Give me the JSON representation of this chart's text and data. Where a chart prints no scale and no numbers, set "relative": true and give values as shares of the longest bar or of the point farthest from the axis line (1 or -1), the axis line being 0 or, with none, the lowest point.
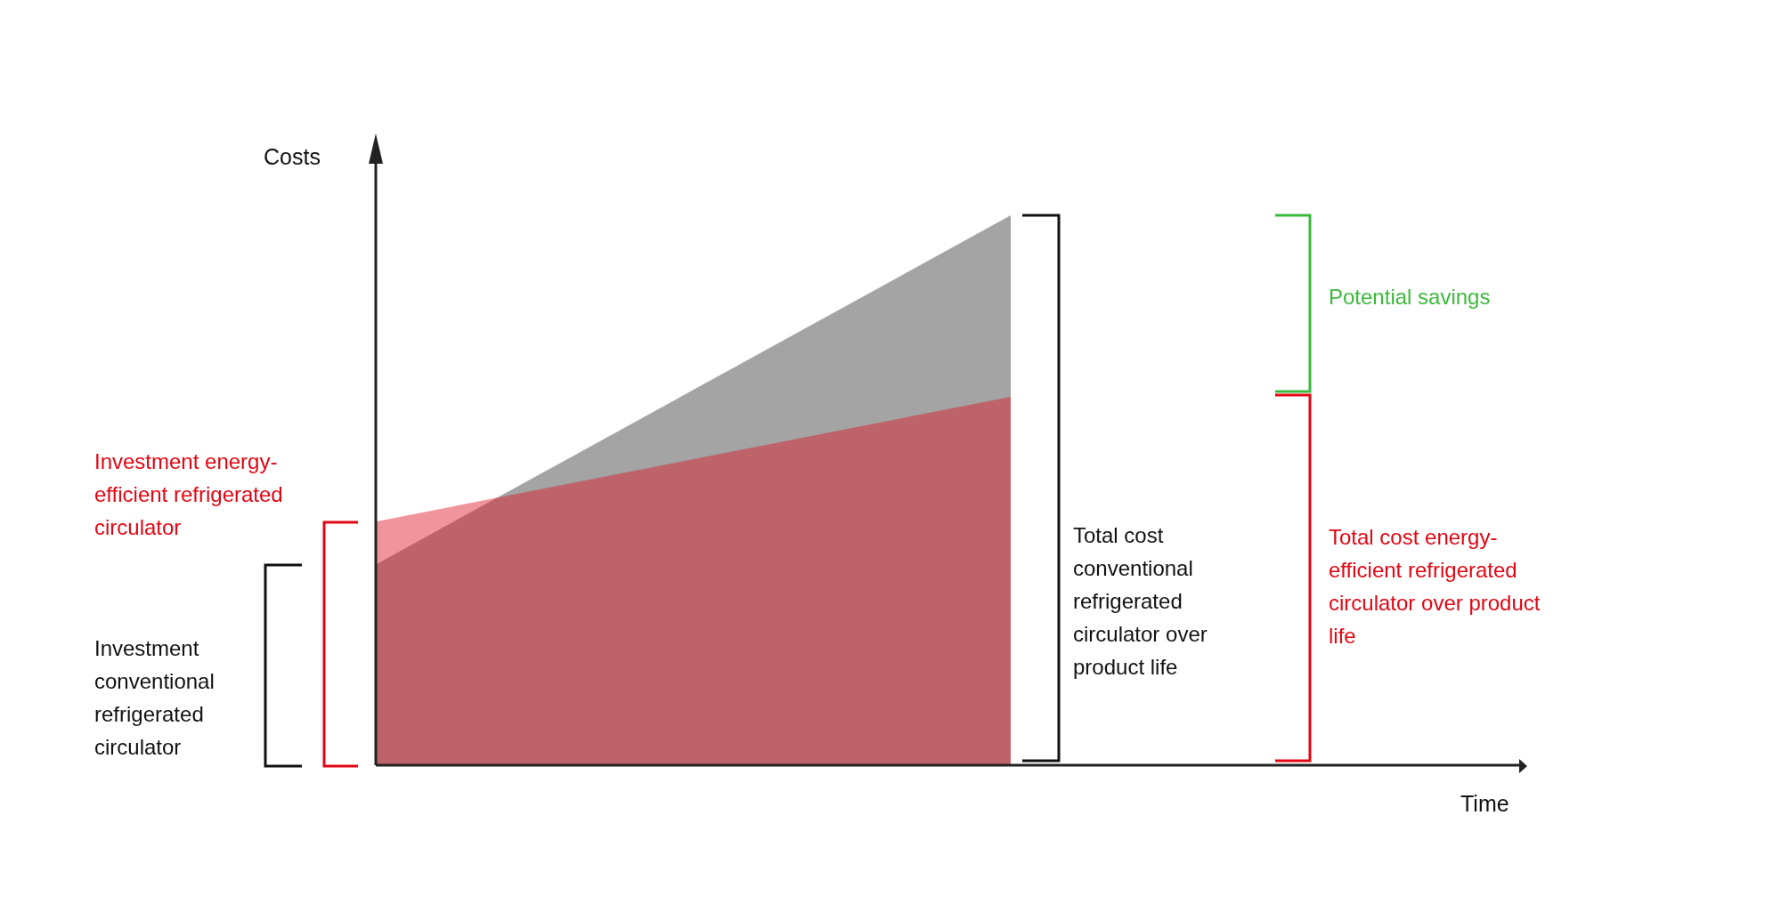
{
  "chart_data": {
    "type": "area",
    "relative": true,
    "ylabel": "Costs",
    "categories": [
      null,
      null
    ],
    "series": [
      {
        "color": "#a4a4a4",
        "values": [
          0.365,
          1
        ]
      },
      {
        "color": "#de1421",
        "values": [
          0.443,
          0.67
        ]
      }
    ],
    "annotations": [
      "Time",
      "Investment energy-efficient refrigerated circulator",
      "Investment conventional refrigerated circulator",
      "Total cost conventional refrigerated circulator over product life",
      "Potential savings",
      "Total cost energy-efficient refrigerated circulator over product life"
    ]
  }
}
